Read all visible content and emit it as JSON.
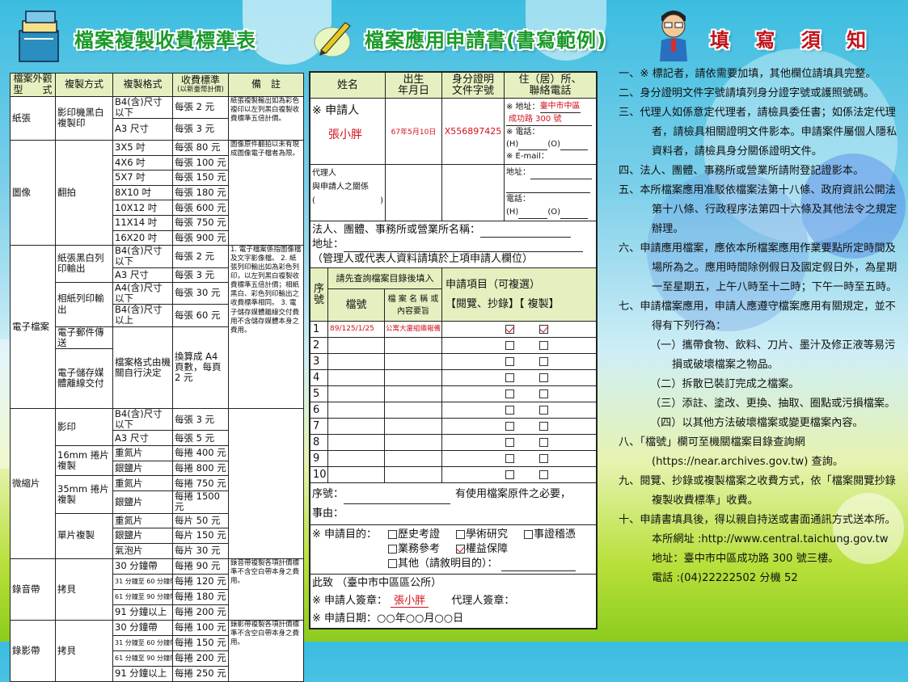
{
  "titles": {
    "fee_table": "檔案複製收費標準表",
    "application_form": "檔案應用申請書(書寫範例)",
    "instructions": "填 寫 須 知"
  },
  "colors": {
    "title_green": "#1a9a2a",
    "title_red": "#c0141c",
    "header_fill": "#e5f0c0",
    "sample_red": "#d0101a"
  },
  "fee_table": {
    "headers": [
      "檔案外觀型　　式",
      "複製方式",
      "複製格式",
      "收費標準",
      "(以新臺幣計價)",
      "備　註"
    ],
    "rows": [
      [
        {
          "t": "紙張",
          "rs": 2
        },
        {
          "t": "影印機黑白複製印",
          "rs": 2
        },
        {
          "t": "B4(含)尺寸以下"
        },
        {
          "t": "每張 2 元"
        },
        {
          "t": "紙張複製輸出如為彩色複印以左列黑白複製收費標準五倍計價。",
          "rs": 2,
          "note": true
        }
      ],
      [
        {
          "t": "A3 尺寸"
        },
        {
          "t": "每張 3 元"
        }
      ],
      [
        {
          "t": "圖像",
          "rs": 7
        },
        {
          "t": "翻拍",
          "rs": 7
        },
        {
          "t": "3X5 吋"
        },
        {
          "t": "每張 80 元"
        },
        {
          "t": "圖像原件翻拍以未有現成圖像電子檔者為限。",
          "rs": 7,
          "note": true
        }
      ],
      [
        {
          "t": "4X6 吋"
        },
        {
          "t": "每張 100 元"
        }
      ],
      [
        {
          "t": "5X7 吋"
        },
        {
          "t": "每張 150 元"
        }
      ],
      [
        {
          "t": "8X10 吋"
        },
        {
          "t": "每張 180 元"
        }
      ],
      [
        {
          "t": "10X12 吋"
        },
        {
          "t": "每張 600 元"
        }
      ],
      [
        {
          "t": "11X14 吋"
        },
        {
          "t": "每張 750 元"
        }
      ],
      [
        {
          "t": "16X20 吋"
        },
        {
          "t": "每張 900 元"
        }
      ],
      [
        {
          "t": "電子檔案",
          "rs": 6
        },
        {
          "t": "紙張黑白列印輸出",
          "rs": 2
        },
        {
          "t": "B4(含)尺寸以下"
        },
        {
          "t": "每張 2 元"
        },
        {
          "t": "1. 電子檔案係指圖像檔及文字影像檔。 2. 紙張列印輸出如為彩色列印，以左列黑白複製收費標準五倍計價；相紙黑白、彩色列印輸出之收費標準相同。 3. 電子儲存媒體離線交付費用不含儲存媒體本身之費用。",
          "rs": 6,
          "note": true
        }
      ],
      [
        {
          "t": "A3 尺寸"
        },
        {
          "t": "每張 3 元"
        }
      ],
      [
        {
          "t": "相紙列印輸出",
          "rs": 2
        },
        {
          "t": "A4(含)尺寸以下"
        },
        {
          "t": "每張 30 元"
        }
      ],
      [
        {
          "t": "B4(含)尺寸以上"
        },
        {
          "t": "每張 60 元"
        }
      ],
      [
        {
          "t": "電子郵件傳送"
        },
        {
          "t": "檔案格式由機關自行決定",
          "rs": 2
        },
        {
          "t": "換算成 A4 頁數，每頁 2 元",
          "rs": 2
        }
      ],
      [
        {
          "t": "電子儲存媒體離線交付"
        }
      ],
      [
        {
          "t": "微縮片",
          "rs": 9
        },
        {
          "t": "影印",
          "rs": 2
        },
        {
          "t": "B4(含)尺寸以下"
        },
        {
          "t": "每張 3 元"
        },
        {
          "t": "",
          "rs": 9
        }
      ],
      [
        {
          "t": "A3 尺寸"
        },
        {
          "t": "每張 5 元"
        }
      ],
      [
        {
          "t": "16mm 捲片複製",
          "rs": 2
        },
        {
          "t": "重氮片"
        },
        {
          "t": "每捲 400 元"
        }
      ],
      [
        {
          "t": "銀鹽片"
        },
        {
          "t": "每捲 800 元"
        }
      ],
      [
        {
          "t": "35mm 捲片複製",
          "rs": 2
        },
        {
          "t": "重氮片"
        },
        {
          "t": "每捲 750 元"
        }
      ],
      [
        {
          "t": "銀鹽片"
        },
        {
          "t": "每捲 1500 元"
        }
      ],
      [
        {
          "t": "單片複製",
          "rs": 3
        },
        {
          "t": "重氮片"
        },
        {
          "t": "每片 50 元"
        }
      ],
      [
        {
          "t": "銀鹽片"
        },
        {
          "t": "每片 150 元"
        }
      ],
      [
        {
          "t": "氣泡片"
        },
        {
          "t": "每片 30 元"
        }
      ],
      [
        {
          "t": "錄音帶",
          "rs": 4
        },
        {
          "t": "拷貝",
          "rs": 4
        },
        {
          "t": "30 分鐘帶"
        },
        {
          "t": "每捲 90 元"
        },
        {
          "t": "錄音帶複製各項計價標準不含空白帶本身之費用。",
          "rs": 4,
          "note": true
        }
      ],
      [
        {
          "t": "31 分鐘至 60 分鐘帶",
          "small": true
        },
        {
          "t": "每捲 120 元"
        }
      ],
      [
        {
          "t": "61 分鐘至 90 分鐘帶",
          "small": true
        },
        {
          "t": "每捲 180 元"
        }
      ],
      [
        {
          "t": "91 分鐘以上"
        },
        {
          "t": "每捲 200 元"
        }
      ],
      [
        {
          "t": "錄影帶",
          "rs": 4
        },
        {
          "t": "拷貝",
          "rs": 4
        },
        {
          "t": "30 分鐘帶"
        },
        {
          "t": "每捲 100 元"
        },
        {
          "t": "錄影帶複製各項計價標準不含空白帶本身之費用。",
          "rs": 4,
          "note": true
        }
      ],
      [
        {
          "t": "31 分鐘至 60 分鐘帶",
          "small": true
        },
        {
          "t": "每捲 150 元"
        }
      ],
      [
        {
          "t": "61 分鐘至 90 分鐘帶",
          "small": true
        },
        {
          "t": "每捲 200 元"
        }
      ],
      [
        {
          "t": "91 分鐘以上"
        },
        {
          "t": "每捲 250 元"
        }
      ]
    ]
  },
  "form": {
    "headers": {
      "name": "姓名",
      "birth": "出生\n年月日",
      "id": "身分證明\n文件字號",
      "address": "住（居）所、\n聯絡電話"
    },
    "applicant": {
      "label": "※ 申請人",
      "name": "張小胖",
      "birth": "67年5月10日",
      "id": "X556897425",
      "address_label": "※ 地址：",
      "address_1": "臺中市中區",
      "address_2": "成功路 300 號",
      "phone_label": "※ 電話：",
      "phone_h": "(H)",
      "phone_o": "(O)",
      "email_label": "※ E-mail："
    },
    "agent": {
      "label_1": "代理人",
      "label_2": "與申請人之關係",
      "paren_open": "(",
      "paren_close": ")",
      "address_label": "地址：",
      "phone_label": "電話：",
      "phone_h": "(H)",
      "phone_o": "(O)"
    },
    "corporate": {
      "name_label": "法人、團體、事務所或營業所名稱：",
      "address_label": "地址：",
      "note": "（管理人或代表人資料請填於上項申請人欄位）"
    },
    "items": {
      "seq_header": "序\n號",
      "lookup_header": "請先查詢檔案目錄後填入",
      "file_no_header": "檔號",
      "file_name_header": "檔 案 名 稱 或\n內容要旨",
      "apply_header": "申請項目（可複選）",
      "apply_options": "【閱覽、抄錄】【 複製】",
      "rows": [
        {
          "seq": "1",
          "file_no": "89/125/1/25",
          "file_name": "公寓大廈組織報備",
          "read": true,
          "copy": true
        },
        {
          "seq": "2",
          "file_no": "",
          "file_name": "",
          "read": false,
          "copy": false
        },
        {
          "seq": "3",
          "file_no": "",
          "file_name": "",
          "read": false,
          "copy": false
        },
        {
          "seq": "4",
          "file_no": "",
          "file_name": "",
          "read": false,
          "copy": false
        },
        {
          "seq": "5",
          "file_no": "",
          "file_name": "",
          "read": false,
          "copy": false
        },
        {
          "seq": "6",
          "file_no": "",
          "file_name": "",
          "read": false,
          "copy": false
        },
        {
          "seq": "7",
          "file_no": "",
          "file_name": "",
          "read": false,
          "copy": false
        },
        {
          "seq": "8",
          "file_no": "",
          "file_name": "",
          "read": false,
          "copy": false
        },
        {
          "seq": "9",
          "file_no": "",
          "file_name": "",
          "read": false,
          "copy": false
        },
        {
          "seq": "10",
          "file_no": "",
          "file_name": "",
          "read": false,
          "copy": false
        }
      ]
    },
    "original_use": {
      "seq_label": "序號：",
      "need_label": "有使用檔案原件之必要，",
      "reason_label": "事由："
    },
    "purpose": {
      "label": "※ 申請目的：",
      "options": [
        {
          "label": "歷史考證",
          "checked": false
        },
        {
          "label": "學術研究",
          "checked": false
        },
        {
          "label": "事證稽憑",
          "checked": false
        },
        {
          "label": "業務參考",
          "checked": false
        },
        {
          "label": "權益保障",
          "checked": true
        },
        {
          "label": "其他（請敘明目的）：",
          "checked": false
        }
      ]
    },
    "footer": {
      "to": "此致 （臺中市中區區公所）",
      "applicant_sign_label": "※ 申請人簽章：",
      "applicant_sign": "張小胖",
      "agent_sign_label": "代理人簽章：",
      "date": "※ 申請日期：○○年○○月○○日"
    }
  },
  "instructions": [
    {
      "text": "一、※ 標記者，請依需要加填，其他欄位請填具完整。",
      "style": "item"
    },
    {
      "text": "二、身分證明文件字號請填列身分證字號或護照號碼。",
      "style": "item"
    },
    {
      "text": "三、代理人如係意定代理者，請檢具委任書；如係法定代理者，請檢具相關證明文件影本。申請案件屬個人隱私資料者，請檢具身分關係證明文件。",
      "style": "item"
    },
    {
      "text": "四、法人、團體、事務所或營業所請附登記證影本。",
      "style": "item"
    },
    {
      "text": "五、本所檔案應用准駁依檔案法第十八條、政府資訊公開法第十八條、行政程序法第四十六條及其他法令之規定辦理。",
      "style": "item"
    },
    {
      "text": "六、申請應用檔案，應依本所檔案應用作業要點所定時間及場所為之。應用時間除例假日及國定假日外，為星期一至星期五，上午八時至十二時；下午一時至五時。",
      "style": "item"
    },
    {
      "text": "七、申請檔案應用，申請人應遵守檔案應用有關規定，並不得有下列行為：",
      "style": "item"
    },
    {
      "text": "（一）攜帶食物、飲料、刀片、墨汁及修正液等易污損或破壞檔案之物品。",
      "style": "sub"
    },
    {
      "text": "（二）拆散已裝訂完成之檔案。",
      "style": "sub"
    },
    {
      "text": "（三）添註、塗改、更換、抽取、圈點或污損檔案。",
      "style": "sub"
    },
    {
      "text": "（四）以其他方法破壞檔案或變更檔案內容。",
      "style": "sub"
    },
    {
      "text": "八、「檔號」欄可至機關檔案目錄查詢網 (https://near.archives.gov.tw) 查詢。",
      "style": "item"
    },
    {
      "text": "九、閱覽、抄錄或複製檔案之收費方式，依「檔案閱覽抄錄複製收費標準」收費。",
      "style": "item"
    },
    {
      "text": "十、申請書填具後，得以親自持送或書面通訊方式送本所。",
      "style": "item"
    },
    {
      "text": "本所網址 :http://www.central.taichung.gov.tw",
      "style": "plain"
    },
    {
      "text": "地址：臺中市中區成功路 300 號三樓。",
      "style": "plain"
    },
    {
      "text": "電話 :(04)22222502 分機 52",
      "style": "plain"
    }
  ]
}
